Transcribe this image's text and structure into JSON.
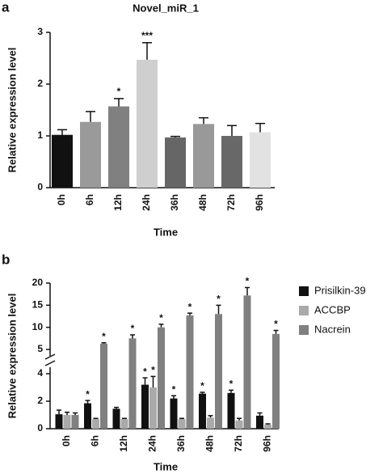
{
  "chart_data": [
    {
      "type": "bar",
      "panel": "a",
      "title": "Novel_miR_1",
      "y_label": "Relative expression level",
      "x_label": "Time",
      "categories": [
        "0h",
        "6h",
        "12h",
        "24h",
        "36h",
        "48h",
        "72h",
        "96h"
      ],
      "values": [
        1.02,
        1.27,
        1.57,
        2.47,
        0.97,
        1.23,
        1.0,
        1.07
      ],
      "errors": [
        0.1,
        0.2,
        0.15,
        0.33,
        0.02,
        0.12,
        0.2,
        0.17
      ],
      "significance": [
        null,
        null,
        "*",
        "***",
        null,
        null,
        null,
        null
      ],
      "colors": [
        "#111111",
        "#9a9a9a",
        "#808080",
        "#cfcfcf",
        "#666666",
        "#999999",
        "#686868",
        "#e2e2e2"
      ],
      "ylim": [
        0,
        3
      ],
      "yticks": [
        0,
        1,
        2,
        3
      ]
    },
    {
      "type": "grouped-bar",
      "panel": "b",
      "y_label": "Relative expression level",
      "x_label": "Time",
      "categories": [
        "0h",
        "6h",
        "12h",
        "24h",
        "36h",
        "48h",
        "72h",
        "96h"
      ],
      "series": [
        {
          "name": "Prisilkin-39",
          "color": "#111111",
          "values": [
            1.05,
            1.85,
            1.45,
            3.2,
            2.2,
            2.55,
            2.6,
            0.95
          ],
          "errors": [
            0.3,
            0.2,
            0.1,
            0.5,
            0.2,
            0.1,
            0.2,
            0.2
          ],
          "significance": [
            null,
            "*",
            null,
            "*",
            "*",
            "*",
            "*",
            null
          ]
        },
        {
          "name": "ACCBP",
          "color": "#aaaaaa",
          "values": [
            1.0,
            0.7,
            0.7,
            3.0,
            0.7,
            0.8,
            0.6,
            0.3
          ],
          "errors": [
            0.2,
            0.05,
            0.05,
            0.8,
            0.05,
            0.15,
            0.15,
            0.05
          ],
          "significance": [
            null,
            null,
            null,
            "*",
            null,
            null,
            null,
            null
          ]
        },
        {
          "name": "Nacrein",
          "color": "#808080",
          "values": [
            1.0,
            6.3,
            7.5,
            10.0,
            12.7,
            13.0,
            17.2,
            8.5
          ],
          "errors": [
            0.15,
            0.2,
            0.8,
            0.7,
            0.5,
            2.0,
            1.8,
            0.8
          ],
          "significance": [
            null,
            "*",
            "*",
            "*",
            "*",
            "*",
            "*",
            "*"
          ]
        }
      ],
      "axis_break": {
        "lower": {
          "ylim": [
            0,
            4
          ],
          "yticks": [
            0,
            2,
            4
          ]
        },
        "upper": {
          "ylim": [
            5,
            20
          ],
          "yticks": [
            5,
            10,
            15,
            20
          ]
        }
      },
      "legend": "right"
    }
  ]
}
